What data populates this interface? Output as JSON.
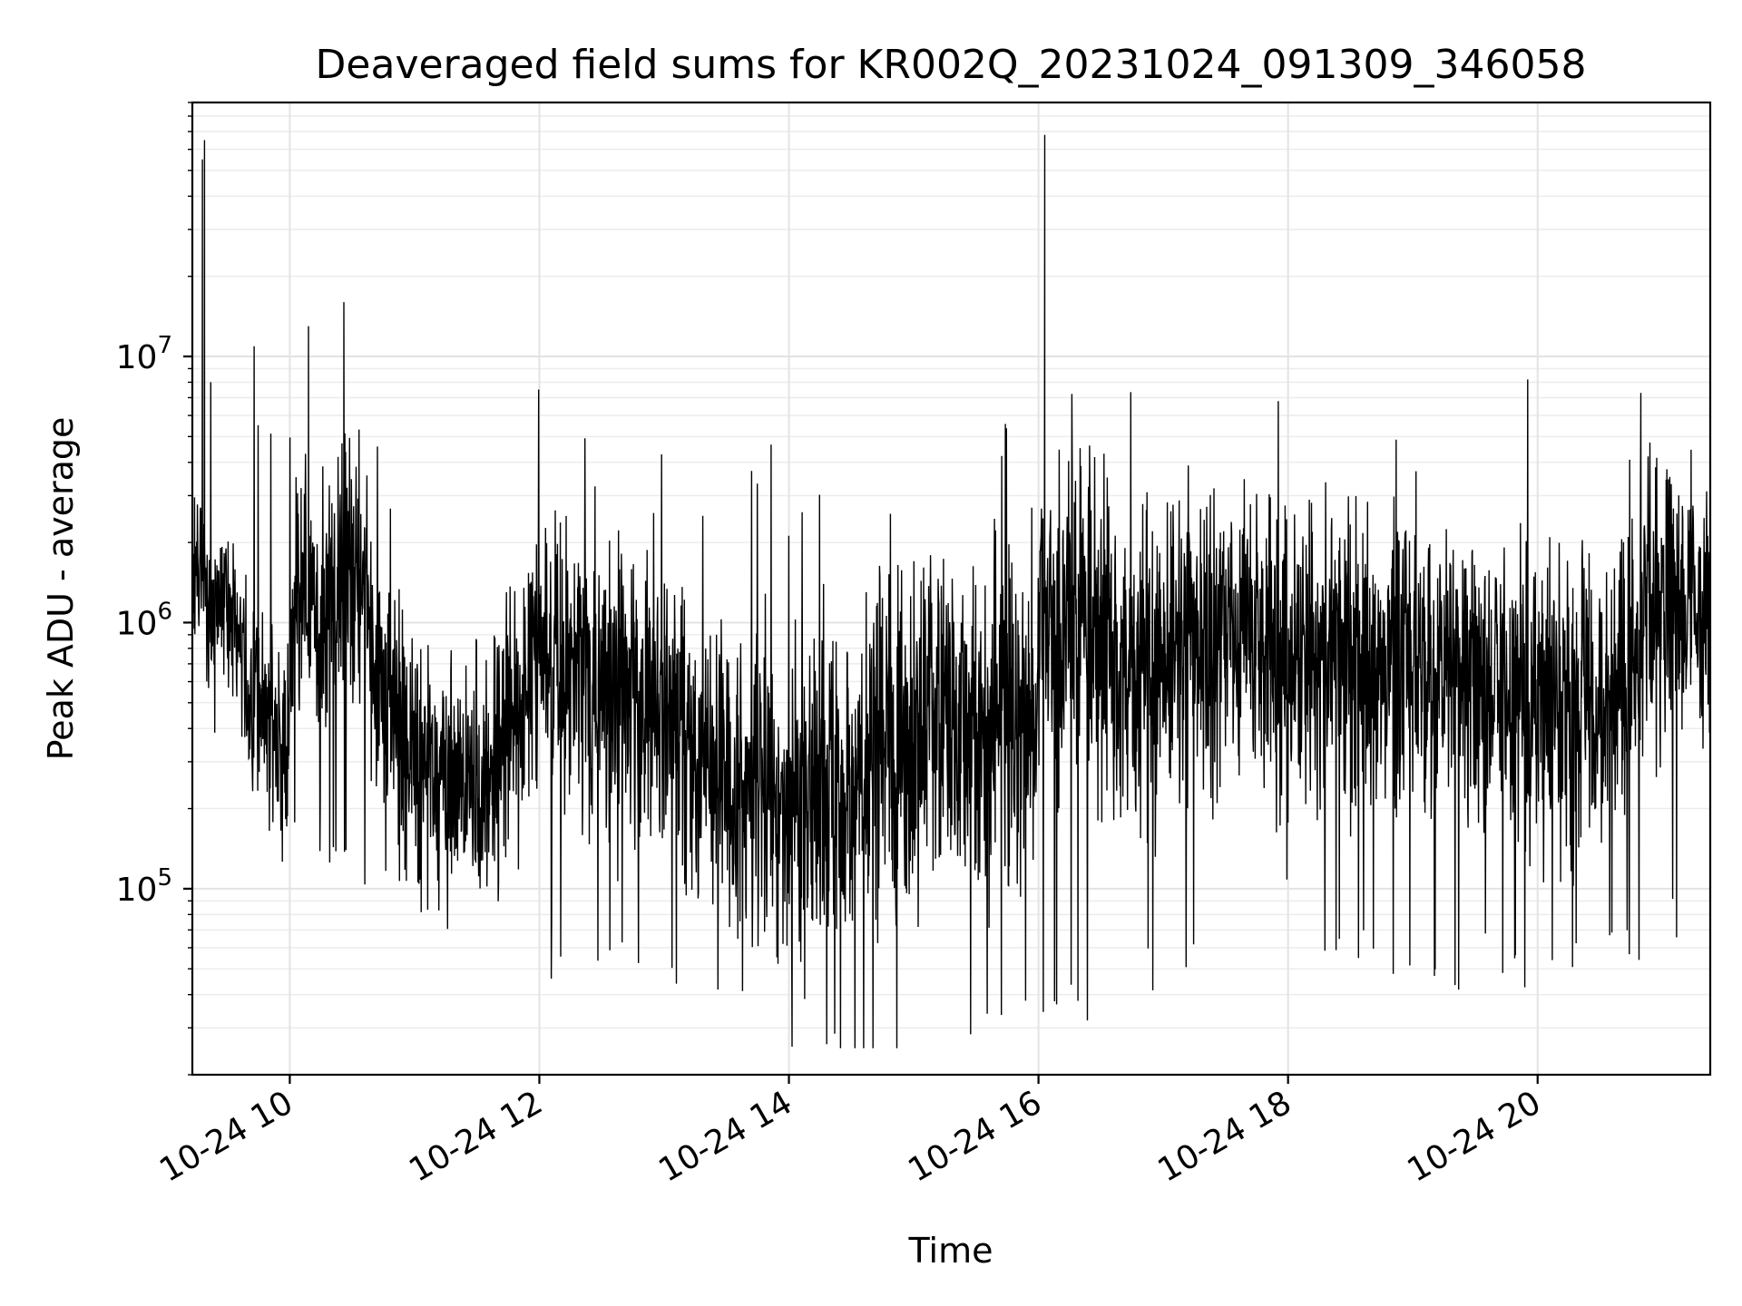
{
  "chart_data": {
    "type": "line",
    "title": "Deaveraged field sums for KR002Q_20231024_091309_346058",
    "xlabel": "Time",
    "ylabel": "Peak ADU - average",
    "x_axis": {
      "kind": "datetime",
      "range": [
        "2023-10-24T09:13:09",
        "2023-10-24T21:23:00"
      ],
      "tick_values": [
        "2023-10-24T10:00",
        "2023-10-24T12:00",
        "2023-10-24T14:00",
        "2023-10-24T16:00",
        "2023-10-24T18:00",
        "2023-10-24T20:00"
      ],
      "tick_labels": [
        "10-24 10",
        "10-24 12",
        "10-24 14",
        "10-24 16",
        "10-24 18",
        "10-24 20"
      ],
      "tick_label_rotation": 30
    },
    "y_axis": {
      "scale": "log",
      "range": [
        20000,
        90000000
      ],
      "major_ticks": [
        {
          "value": 100000,
          "base": "10",
          "exponent": "5"
        },
        {
          "value": 1000000,
          "base": "10",
          "exponent": "6"
        },
        {
          "value": 10000000,
          "base": "10",
          "exponent": "7"
        }
      ]
    },
    "grid": {
      "major": true,
      "minor": true
    },
    "series": [
      {
        "color": "#000000",
        "line_width": 0.6,
        "x": [
          "2023-10-24T09:13:09",
          "2023-10-24T09:18",
          "2023-10-24T09:19",
          "2023-10-24T09:20",
          "2023-10-24T09:30",
          "2023-10-24T09:45",
          "2023-10-24T10:00",
          "2023-10-24T10:09",
          "2023-10-24T10:15",
          "2023-10-24T10:26",
          "2023-10-24T10:40",
          "2023-10-24T11:00",
          "2023-10-24T11:30",
          "2023-10-24T12:00",
          "2023-10-24T12:30",
          "2023-10-24T13:00",
          "2023-10-24T13:30",
          "2023-10-24T14:00",
          "2023-10-24T14:30",
          "2023-10-24T15:00",
          "2023-10-24T15:30",
          "2023-10-24T16:00",
          "2023-10-24T16:03",
          "2023-10-24T16:30",
          "2023-10-24T17:00",
          "2023-10-24T17:30",
          "2023-10-24T18:00",
          "2023-10-24T18:30",
          "2023-10-24T19:00",
          "2023-10-24T19:30",
          "2023-10-24T20:00",
          "2023-10-24T20:30",
          "2023-10-24T21:00",
          "2023-10-24T21:23"
        ],
        "y": [
          1500000,
          55000000,
          65000000,
          1000000,
          1200000,
          450000,
          380000,
          13000000,
          500000,
          16000000,
          650000,
          300000,
          250000,
          700000,
          650000,
          450000,
          250000,
          200000,
          280000,
          380000,
          420000,
          500000,
          68000000,
          600000,
          750000,
          800000,
          700000,
          750000,
          800000,
          650000,
          500000,
          450000,
          1300000,
          1000000
        ],
        "envelope_low": [
          700000,
          250000,
          120000,
          150000,
          80000,
          60000,
          45000,
          40000,
          35000,
          45000,
          55000,
          70000,
          75000,
          70000,
          75000,
          70000,
          80000,
          120000
        ],
        "envelope_high": [
          2500000,
          2200000,
          2500000,
          1800000,
          1800000,
          1500000,
          1000000,
          1000000,
          1200000,
          1300000,
          1800000,
          1900000,
          1800000,
          1700000,
          1800000,
          1800000,
          1500000,
          2400000
        ]
      }
    ]
  }
}
